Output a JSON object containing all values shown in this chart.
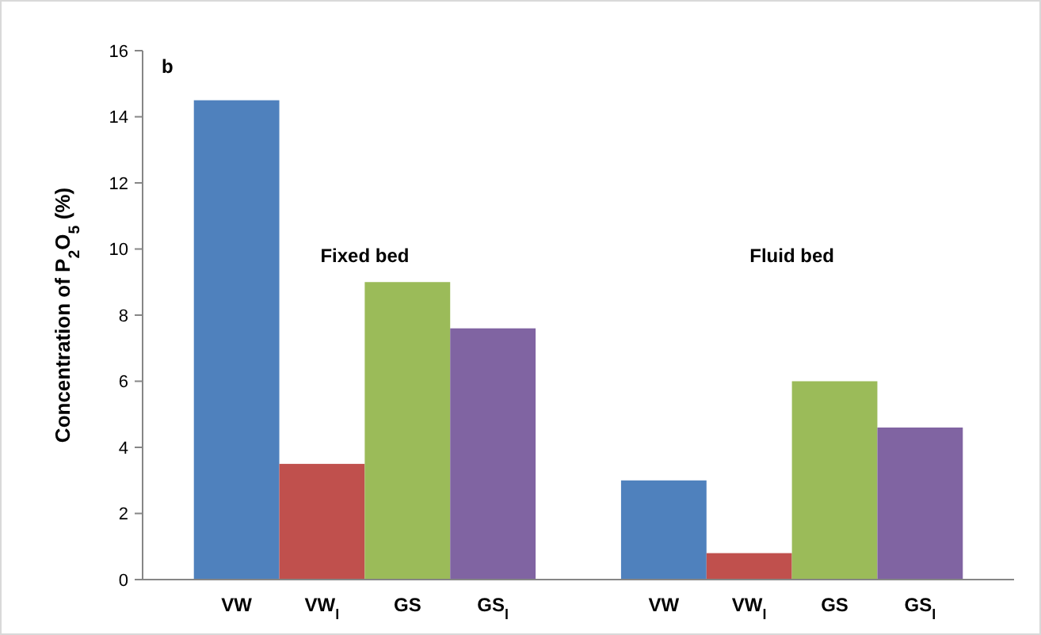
{
  "chart_data": {
    "type": "bar",
    "title": "b",
    "ylabel": "Concentration of P$_{2}$O$_{5}$ (%)",
    "categories": [
      "VW",
      "VW$_{l}$",
      "GS",
      "GS$_{l}$",
      null,
      "VW",
      "VW$_{l}$",
      "GS",
      "GS$_{l}$"
    ],
    "values": [
      14.5,
      3.5,
      9.0,
      7.6,
      null,
      3.0,
      0.8,
      6.0,
      4.6
    ],
    "colors": [
      "#4f81bd",
      "#c0504d",
      "#9bbb59",
      "#8064a2",
      null,
      "#4f81bd",
      "#c0504d",
      "#9bbb59",
      "#8064a2"
    ],
    "ylim": [
      0,
      16
    ],
    "yticks": [
      0,
      2,
      4,
      6,
      8,
      10,
      12,
      14,
      16
    ],
    "grid": false,
    "annotations": [
      "Fixed bed",
      "Fluid bed"
    ]
  }
}
